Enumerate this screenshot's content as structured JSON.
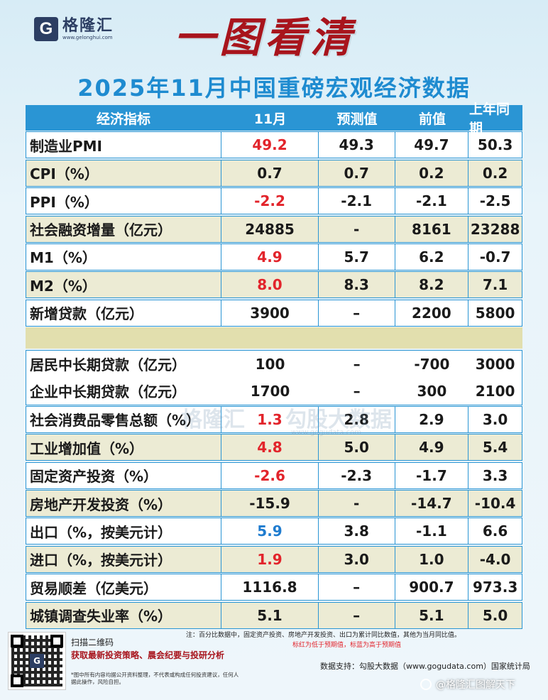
{
  "logo": {
    "mark": "G",
    "name": "格隆汇",
    "url": "www.gelonghui.com"
  },
  "headline": "一图看清",
  "subtitle": "2025年11月中国重磅宏观经济数据",
  "table": {
    "headers": [
      "经济指标",
      "11月",
      "预测值",
      "前值",
      "上年同期"
    ],
    "rows": [
      {
        "name": "制造业PMI",
        "cur": "49.2",
        "cur_color": "red",
        "fc": "49.3",
        "prev": "49.7",
        "yoy": "50.3",
        "bg": "white"
      },
      {
        "name": "CPI（%）",
        "cur": "0.7",
        "cur_color": "black",
        "fc": "0.7",
        "prev": "0.2",
        "yoy": "0.2",
        "bg": "beige"
      },
      {
        "name": "PPI（%）",
        "cur": "-2.2",
        "cur_color": "red",
        "fc": "-2.1",
        "prev": "-2.1",
        "yoy": "-2.5",
        "bg": "white"
      },
      {
        "name": "社会融资增量（亿元）",
        "cur": "24885",
        "cur_color": "black",
        "fc": "-",
        "prev": "8161",
        "yoy": "23288",
        "bg": "beige"
      },
      {
        "name": "M1（%）",
        "cur": "4.9",
        "cur_color": "red",
        "fc": "5.7",
        "prev": "6.2",
        "yoy": "-0.7",
        "bg": "white"
      },
      {
        "name": "M2（%）",
        "cur": "8.0",
        "cur_color": "red",
        "fc": "8.3",
        "prev": "8.2",
        "yoy": "7.1",
        "bg": "beige"
      },
      {
        "name": "新增贷款（亿元）",
        "cur": "3900",
        "cur_color": "black",
        "fc": "–",
        "prev": "2200",
        "yoy": "5800",
        "bg": "white"
      }
    ],
    "group_rows": [
      {
        "name": "居民中长期贷款（亿元）",
        "cur": "100",
        "fc": "–",
        "prev": "-700",
        "yoy": "3000"
      },
      {
        "name": "企业中长期贷款（亿元）",
        "cur": "1700",
        "fc": "–",
        "prev": "300",
        "yoy": "2100"
      }
    ],
    "rows2": [
      {
        "name": "社会消费品零售总额（%）",
        "cur": "1.3",
        "cur_color": "red",
        "fc": "2.8",
        "prev": "2.9",
        "yoy": "3.0",
        "bg": "white"
      },
      {
        "name": "工业增加值（%）",
        "cur": "4.8",
        "cur_color": "red",
        "fc": "5.0",
        "prev": "4.9",
        "yoy": "5.4",
        "bg": "beige"
      },
      {
        "name": "固定资产投资（%）",
        "cur": "-2.6",
        "cur_color": "red",
        "fc": "-2.3",
        "prev": "-1.7",
        "yoy": "3.3",
        "bg": "white"
      },
      {
        "name": "房地产开发投资（%）",
        "cur": "-15.9",
        "cur_color": "black",
        "fc": "-",
        "prev": "-14.7",
        "yoy": "-10.4",
        "bg": "beige"
      },
      {
        "name": "出口（%，按美元计）",
        "cur": "5.9",
        "cur_color": "blue",
        "fc": "3.8",
        "prev": "-1.1",
        "yoy": "6.6",
        "bg": "white"
      },
      {
        "name": "进口（%，按美元计）",
        "cur": "1.9",
        "cur_color": "red",
        "fc": "3.0",
        "prev": "1.0",
        "yoy": "-4.0",
        "bg": "beige"
      },
      {
        "name": "贸易顺差（亿美元）",
        "cur": "1116.8",
        "cur_color": "black",
        "fc": "–",
        "prev": "900.7",
        "yoy": "973.3",
        "bg": "white"
      },
      {
        "name": "城镇调查失业率（%）",
        "cur": "5.1",
        "cur_color": "black",
        "fc": "–",
        "prev": "5.1",
        "yoy": "5.0",
        "bg": "beige"
      }
    ]
  },
  "watermarks": {
    "a": "格隆汇",
    "b": "勾股大数据",
    "c": "www.gogudata.com"
  },
  "footer": {
    "scan": "扫描二维码",
    "promo": "获取最新投资策略、晨会纪要与投研分析",
    "disclaimer": "*图中所有内容均据公开资料整理，不代表或构成任何投资建议，任何人据此操作，风险自担。",
    "note1": "注：百分比数据中，固定资产投资、房地产开发投资、出口为累计同比数值，其他为当月同比值。",
    "note2": "标红为低于预期值，标蓝为高于预期值",
    "support": "数据支持：勾股大数据（www.gogudata.com）国家统计局",
    "weibo": "@格隆汇图解天下"
  }
}
